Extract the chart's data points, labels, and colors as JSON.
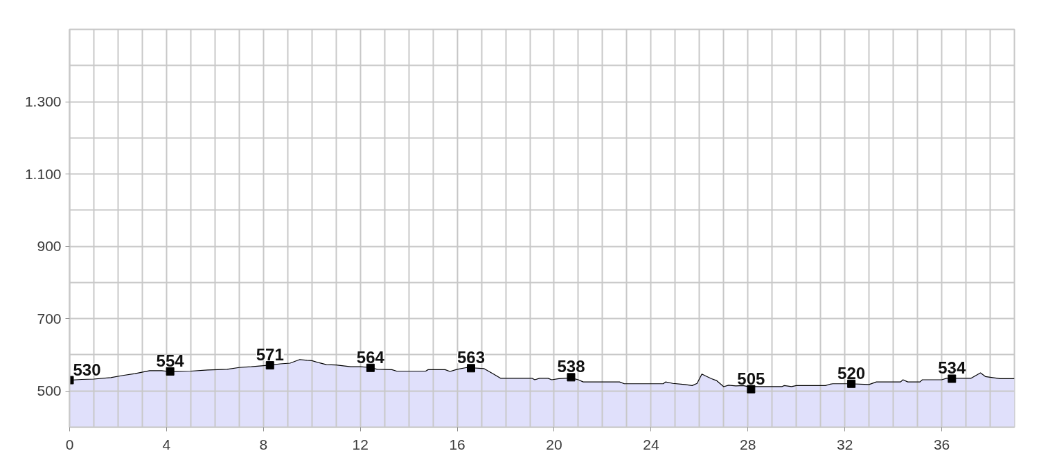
{
  "chart_data": {
    "type": "area",
    "xlim": [
      0,
      39
    ],
    "ylim": [
      400,
      1500
    ],
    "xticks": [
      0,
      {
        "value": 1,
        "label": null
      },
      {
        "value": 2,
        "label": null
      },
      {
        "value": 3,
        "label": null
      },
      4,
      {
        "value": 5,
        "label": null
      },
      {
        "value": 6,
        "label": null
      },
      {
        "value": 7,
        "label": null
      },
      8,
      {
        "value": 9,
        "label": null
      },
      {
        "value": 10,
        "label": null
      },
      {
        "value": 11,
        "label": null
      },
      12,
      {
        "value": 13,
        "label": null
      },
      {
        "value": 14,
        "label": null
      },
      {
        "value": 15,
        "label": null
      },
      16,
      {
        "value": 17,
        "label": null
      },
      {
        "value": 18,
        "label": null
      },
      {
        "value": 19,
        "label": null
      },
      20,
      {
        "value": 21,
        "label": null
      },
      {
        "value": 22,
        "label": null
      },
      {
        "value": 23,
        "label": null
      },
      24,
      {
        "value": 25,
        "label": null
      },
      {
        "value": 26,
        "label": null
      },
      {
        "value": 27,
        "label": null
      },
      28,
      {
        "value": 29,
        "label": null
      },
      {
        "value": 30,
        "label": null
      },
      {
        "value": 31,
        "label": null
      },
      32,
      {
        "value": 33,
        "label": null
      },
      {
        "value": 34,
        "label": null
      },
      {
        "value": 35,
        "label": null
      },
      36,
      {
        "value": 37,
        "label": null
      },
      {
        "value": 38,
        "label": null
      }
    ],
    "yticks": [
      500,
      {
        "value": 600,
        "label": null
      },
      700,
      {
        "value": 800,
        "label": null
      },
      900,
      {
        "value": 1000,
        "label": null
      },
      {
        "value": 1100,
        "label": "1.100"
      },
      {
        "value": 1200,
        "label": null
      },
      {
        "value": 1300,
        "label": "1.300"
      },
      {
        "value": 1400,
        "label": null
      }
    ],
    "grid": true,
    "series": [
      {
        "color": "#e0e0fb",
        "x": [
          0,
          0.5,
          1.0,
          1.7,
          2.2,
          2.7,
          3.3,
          3.8,
          4.1,
          5.0,
          5.7,
          6.5,
          7.0,
          7.5,
          8.0,
          8.3,
          8.7,
          9.1,
          9.5,
          9.8,
          10.0,
          10.3,
          10.6,
          11.0,
          11.6,
          12.0,
          12.4,
          12.7,
          13.3,
          13.5,
          14.7,
          14.8,
          15.5,
          15.7,
          16.0,
          16.4,
          17.1,
          17.5,
          17.8,
          19.1,
          19.2,
          19.4,
          19.75,
          19.9,
          20.2,
          20.7,
          21.0,
          21.2,
          22.7,
          22.9,
          24.5,
          24.6,
          24.9,
          25.4,
          25.7,
          25.9,
          26.1,
          26.3,
          26.5,
          26.7,
          27.0,
          27.2,
          27.5,
          27.8,
          28.0,
          28.6,
          29.4,
          29.5,
          29.8,
          30.0,
          31.2,
          31.4,
          31.5,
          32.2,
          33.0,
          33.3,
          34.3,
          34.4,
          34.6,
          35.1,
          35.2,
          36.0,
          36.2,
          37.2,
          37.6,
          37.8,
          38.1,
          38.4,
          39.0
        ],
        "values": [
          530,
          532,
          533,
          537,
          543,
          548,
          556,
          556,
          554,
          555,
          558,
          560,
          565,
          567,
          570,
          572,
          575,
          577,
          587,
          585,
          584,
          578,
          573,
          572,
          567,
          567,
          565,
          560,
          559,
          555,
          555,
          559,
          559,
          554,
          560,
          565,
          562,
          547,
          535,
          535,
          531,
          535,
          535,
          531,
          534,
          536,
          531,
          525,
          525,
          520,
          520,
          525,
          521,
          518,
          515,
          521,
          547,
          540,
          534,
          529,
          512,
          516,
          514,
          515,
          512,
          512,
          512,
          515,
          512,
          515,
          515,
          519,
          520,
          520,
          518,
          525,
          525,
          531,
          525,
          525,
          531,
          531,
          535,
          535,
          550,
          540,
          537,
          534,
          534
        ]
      },
      {
        "type": "scatter",
        "color": "#000000",
        "marker": "square",
        "x": [
          0,
          4.15,
          8.27,
          12.42,
          16.57,
          20.7,
          28.13,
          32.27,
          36.42
        ],
        "values": [
          530,
          554,
          571,
          564,
          563,
          538,
          505,
          520,
          534
        ],
        "value_labels": [
          "530",
          "554",
          "571",
          "564",
          "563",
          "538",
          "505",
          "520",
          "534"
        ]
      }
    ]
  }
}
